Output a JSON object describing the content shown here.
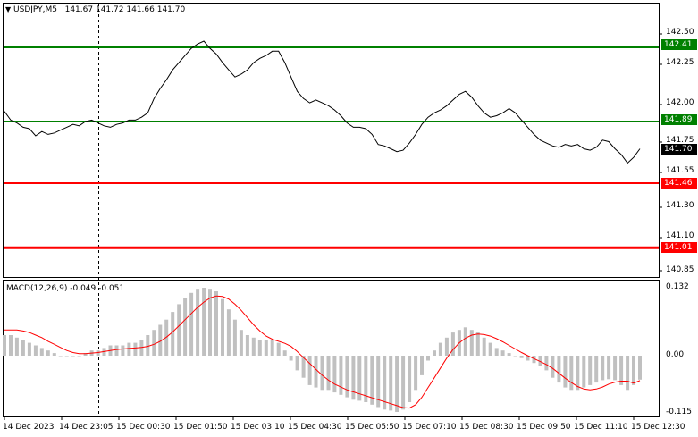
{
  "header": {
    "symbol_label": "USDJPY,M5",
    "ohlc": [
      "141.67",
      "141.72",
      "141.66",
      "141.70"
    ],
    "menu_glyph": "▼"
  },
  "indicator": {
    "label": "MACD(12,26,9)",
    "main_value": "-0.049",
    "signal_value": "-0.051",
    "axis_ticks": [
      "0.132",
      "0.00",
      "-0.115"
    ]
  },
  "price_axis": {
    "ticks": [
      "142.50",
      "142.25",
      "142.00",
      "141.75",
      "141.55",
      "141.30",
      "141.10",
      "140.85"
    ],
    "current_price": "141.70"
  },
  "levels": [
    {
      "price": "142.41",
      "color": "#008000"
    },
    {
      "price": "141.89",
      "color": "#008000"
    },
    {
      "price": "141.46",
      "color": "#ff0000"
    },
    {
      "price": "141.01",
      "color": "#ff0000"
    }
  ],
  "time_axis": [
    "14 Dec 2023",
    "14 Dec 23:05",
    "15 Dec 00:30",
    "15 Dec 01:50",
    "15 Dec 03:10",
    "15 Dec 04:30",
    "15 Dec 05:50",
    "15 Dec 07:10",
    "15 Dec 08:30",
    "15 Dec 09:50",
    "15 Dec 11:10",
    "15 Dec 12:30"
  ],
  "colors": {
    "line": "#000000",
    "signal": "#ff0000",
    "histogram": "#c0c0c0",
    "support_resistance_green": "#008000",
    "support_resistance_red": "#ff0000"
  },
  "chart_data": {
    "type": "line",
    "series": [
      {
        "name": "USDJPY,M5",
        "values": [
          141.96,
          141.9,
          141.88,
          141.85,
          141.84,
          141.79,
          141.82,
          141.8,
          141.81,
          141.83,
          141.85,
          141.87,
          141.86,
          141.89,
          141.9,
          141.88,
          141.86,
          141.85,
          141.87,
          141.88,
          141.9,
          141.9,
          141.92,
          141.95,
          142.05,
          142.12,
          142.18,
          142.25,
          142.3,
          142.35,
          142.4,
          142.43,
          142.45,
          142.4,
          142.36,
          142.3,
          142.25,
          142.2,
          142.22,
          142.25,
          142.3,
          142.33,
          142.35,
          142.38,
          142.38,
          142.3,
          142.2,
          142.1,
          142.05,
          142.02,
          142.04,
          142.02,
          142.0,
          141.97,
          141.93,
          141.88,
          141.85,
          141.85,
          141.84,
          141.8,
          141.73,
          141.72,
          141.7,
          141.68,
          141.69,
          141.74,
          141.8,
          141.87,
          141.92,
          141.95,
          141.97,
          142.0,
          142.04,
          142.08,
          142.1,
          142.06,
          142.0,
          141.95,
          141.92,
          141.93,
          141.95,
          141.98,
          141.95,
          141.9,
          141.85,
          141.8,
          141.76,
          141.74,
          141.72,
          141.71,
          141.73,
          141.72,
          141.73,
          141.7,
          141.69,
          141.71,
          141.76,
          141.75,
          141.7,
          141.66,
          141.6,
          141.64,
          141.7
        ]
      },
      {
        "name": "MACD(12,26,9)",
        "values": [
          0.04,
          0.04,
          0.035,
          0.03,
          0.025,
          0.02,
          0.015,
          0.01,
          0.005,
          0.0,
          0.0,
          0.0,
          0.0,
          0.005,
          0.01,
          0.01,
          0.015,
          0.02,
          0.02,
          0.02,
          0.025,
          0.025,
          0.03,
          0.04,
          0.05,
          0.06,
          0.07,
          0.085,
          0.1,
          0.112,
          0.122,
          0.13,
          0.132,
          0.13,
          0.125,
          0.11,
          0.09,
          0.07,
          0.05,
          0.04,
          0.035,
          0.03,
          0.03,
          0.03,
          0.025,
          0.01,
          -0.01,
          -0.03,
          -0.045,
          -0.06,
          -0.065,
          -0.07,
          -0.07,
          -0.075,
          -0.08,
          -0.085,
          -0.09,
          -0.092,
          -0.095,
          -0.1,
          -0.105,
          -0.11,
          -0.112,
          -0.115,
          -0.11,
          -0.095,
          -0.07,
          -0.04,
          -0.01,
          0.01,
          0.025,
          0.035,
          0.045,
          0.05,
          0.055,
          0.05,
          0.045,
          0.035,
          0.025,
          0.015,
          0.01,
          0.005,
          0.0,
          -0.005,
          -0.01,
          -0.015,
          -0.02,
          -0.03,
          -0.045,
          -0.055,
          -0.065,
          -0.07,
          -0.07,
          -0.065,
          -0.06,
          -0.055,
          -0.05,
          -0.048,
          -0.05,
          -0.06,
          -0.07,
          -0.06,
          -0.049
        ]
      },
      {
        "name": "signal",
        "values": [
          0.05,
          0.05,
          0.05,
          0.048,
          0.045,
          0.04,
          0.035,
          0.028,
          0.022,
          0.016,
          0.01,
          0.006,
          0.004,
          0.004,
          0.005,
          0.006,
          0.008,
          0.01,
          0.012,
          0.013,
          0.014,
          0.015,
          0.016,
          0.018,
          0.022,
          0.028,
          0.036,
          0.046,
          0.058,
          0.07,
          0.082,
          0.094,
          0.104,
          0.112,
          0.116,
          0.115,
          0.11,
          0.1,
          0.088,
          0.074,
          0.06,
          0.048,
          0.038,
          0.032,
          0.028,
          0.024,
          0.018,
          0.008,
          -0.004,
          -0.016,
          -0.028,
          -0.04,
          -0.05,
          -0.058,
          -0.064,
          -0.07,
          -0.074,
          -0.078,
          -0.082,
          -0.086,
          -0.09,
          -0.094,
          -0.098,
          -0.102,
          -0.106,
          -0.107,
          -0.1,
          -0.085,
          -0.065,
          -0.045,
          -0.025,
          -0.005,
          0.012,
          0.025,
          0.034,
          0.04,
          0.042,
          0.041,
          0.038,
          0.033,
          0.027,
          0.02,
          0.013,
          0.006,
          0.0,
          -0.006,
          -0.012,
          -0.018,
          -0.026,
          -0.036,
          -0.046,
          -0.055,
          -0.063,
          -0.068,
          -0.07,
          -0.068,
          -0.064,
          -0.058,
          -0.054,
          -0.052,
          -0.052,
          -0.056,
          -0.051
        ]
      }
    ],
    "ylim": [
      140.8,
      142.6
    ],
    "macd_ylim": [
      -0.122,
      0.14
    ]
  }
}
